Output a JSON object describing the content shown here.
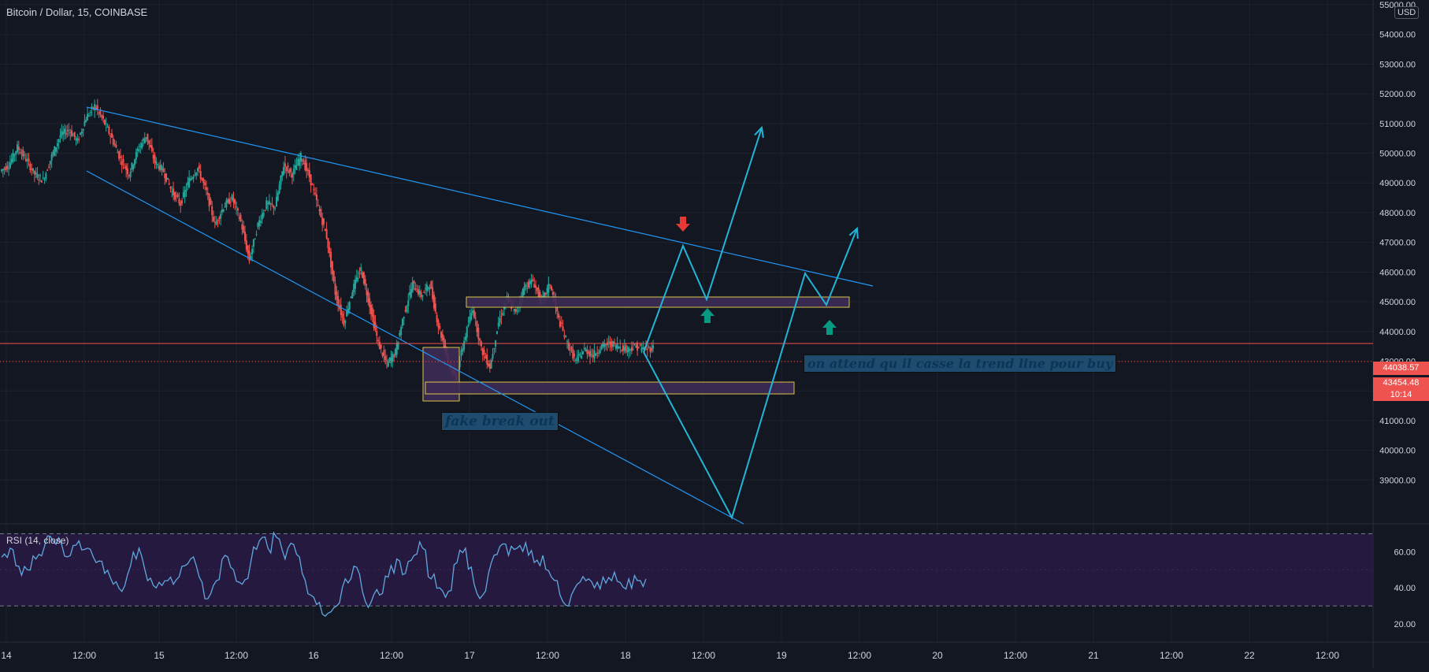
{
  "header": {
    "symbol_title": "Bitcoin / Dollar, 15, COINBASE",
    "currency_badge": "USD"
  },
  "price_labels": {
    "horizontal_line_price": "44038.57",
    "current_price": "43454.48",
    "countdown": "10:14"
  },
  "annotations": {
    "fake_breakout": "fake break out",
    "wait_note": "on attend qu il casse la trend line pour buy"
  },
  "rsi": {
    "title": "RSI (14, close)",
    "upper_band": 70,
    "lower_band": 30
  },
  "colors": {
    "background": "#131722",
    "grid": "#1e222d",
    "up_candle": "#26a69a",
    "down_candle": "#ef5350",
    "trendline": "#2196f3",
    "projection": "#22b5d8",
    "rsi_line": "#5fa8e0",
    "rsi_band_fill": "#2a1a44",
    "zone_border": "#f0d74a",
    "zone_fill": "#3d2b55",
    "price_line": "#ef5350",
    "arrow_down": "#e53935",
    "arrow_up": "#089981"
  },
  "chart_data": [
    {
      "type": "candlestick",
      "title": "Bitcoin / Dollar, 15, COINBASE",
      "y_axis": {
        "ylim": [
          38000,
          55000
        ],
        "ticks": [
          "39000.00",
          "40000.00",
          "41000.00",
          "42000.00",
          "43000.00",
          "44000.00",
          "45000.00",
          "46000.00",
          "47000.00",
          "48000.00",
          "49000.00",
          "50000.00",
          "51000.00",
          "52000.00",
          "53000.00",
          "54000.00",
          "55000.00"
        ]
      },
      "x_axis": {
        "ticks": [
          "14",
          "12:00",
          "15",
          "12:00",
          "16",
          "12:00",
          "17",
          "12:00",
          "18",
          "12:00",
          "19",
          "12:00",
          "20",
          "12:00",
          "21",
          "12:00",
          "22",
          "12:00"
        ]
      },
      "grid": true,
      "series": [
        {
          "name": "Close",
          "x": [
            0,
            6,
            12,
            18,
            24,
            30,
            36,
            42,
            48,
            54,
            60,
            66,
            72,
            78,
            84,
            90,
            96,
            102,
            108,
            114,
            120,
            126,
            132,
            138,
            144,
            150,
            156,
            162,
            168,
            174,
            180,
            186,
            192,
            198,
            204,
            210,
            216,
            222,
            228,
            234,
            240,
            246,
            252,
            258,
            264,
            270,
            276,
            282,
            288,
            294,
            300,
            306,
            312,
            318,
            324,
            330,
            336,
            342,
            348,
            354,
            360,
            366,
            372,
            378,
            384,
            390,
            396,
            402,
            408,
            414,
            420,
            426,
            432,
            438,
            444,
            450
          ],
          "values": [
            49600,
            50200,
            49800,
            49300,
            49100,
            49900,
            50600,
            50800,
            50400,
            51200,
            51600,
            51100,
            50500,
            49800,
            49300,
            50100,
            50600,
            49700,
            49400,
            48700,
            48300,
            49100,
            49500,
            48700,
            47600,
            48200,
            48500,
            47700,
            46400,
            47600,
            48300,
            48200,
            49600,
            49300,
            49900,
            49200,
            48200,
            47200,
            45300,
            44300,
            45400,
            46100,
            44900,
            43600,
            42900,
            43300,
            44600,
            45600,
            45200,
            45600,
            44200,
            43200,
            42400,
            43700,
            44800,
            43400,
            42800,
            44300,
            45100,
            44600,
            45500,
            45700,
            45000,
            45600,
            44400,
            43600,
            43000,
            43400,
            43200,
            43500,
            43600,
            43500,
            43400,
            43500,
            43400,
            43454.48
          ]
        },
        {
          "name": "RSI",
          "y_axis": {
            "ylim": [
              10,
              75
            ],
            "ticks": [
              "20.00",
              "40.00",
              "60.00"
            ]
          },
          "x": [
            0,
            6,
            12,
            18,
            24,
            30,
            36,
            42,
            48,
            54,
            60,
            66,
            72,
            78,
            84,
            90,
            96,
            102,
            108,
            114,
            120,
            126,
            132,
            138,
            144,
            150,
            156,
            162,
            168,
            174,
            180,
            186,
            192,
            198,
            204,
            210,
            216,
            222,
            228,
            234,
            240,
            246,
            252,
            258,
            264,
            270,
            276,
            282,
            288,
            294,
            300,
            306,
            312,
            318,
            324,
            330,
            336,
            342,
            348,
            354,
            360,
            366,
            372,
            378,
            384,
            390,
            396,
            402,
            408,
            414,
            420,
            426,
            432,
            438,
            444,
            450
          ],
          "values": [
            57,
            62,
            52,
            50,
            56,
            63,
            66,
            64,
            58,
            66,
            62,
            54,
            48,
            42,
            38,
            52,
            62,
            44,
            40,
            44,
            42,
            52,
            56,
            46,
            34,
            44,
            58,
            50,
            42,
            54,
            66,
            62,
            68,
            56,
            64,
            48,
            36,
            32,
            26,
            30,
            45,
            52,
            38,
            32,
            36,
            46,
            56,
            48,
            58,
            62,
            45,
            40,
            38,
            54,
            62,
            42,
            36,
            54,
            63,
            58,
            62,
            65,
            54,
            58,
            46,
            36,
            30,
            42,
            44,
            40,
            46,
            44,
            43,
            45,
            44,
            45
          ]
        }
      ]
    }
  ]
}
